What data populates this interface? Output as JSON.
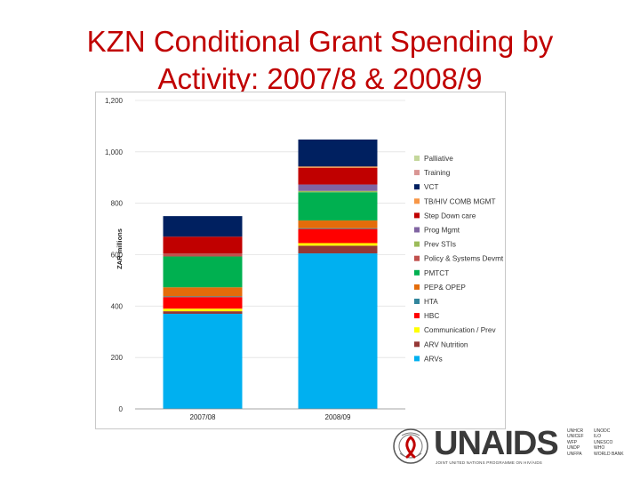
{
  "slide": {
    "title_line1": "KZN Conditional Grant Spending by",
    "title_line2": "Activity: 2007/8 & 2008/9"
  },
  "chart_data": {
    "type": "bar",
    "stacked": true,
    "ylabel": "ZAR millions",
    "ylim": [
      0,
      1200
    ],
    "yticks": [
      0,
      200,
      400,
      600,
      800,
      1000,
      1200
    ],
    "ytick_labels": [
      "0",
      "200",
      "400",
      "600",
      "800",
      "1,000",
      "1,200"
    ],
    "categories": [
      "2007/08",
      "2008/09"
    ],
    "legend_position": "right",
    "series": [
      {
        "name": "ARVs",
        "color": "#00b0f0",
        "values": [
          370,
          605
        ]
      },
      {
        "name": "ARV Nutrition",
        "color": "#953735",
        "values": [
          10,
          30
        ]
      },
      {
        "name": "Communication / Prev",
        "color": "#ffff00",
        "values": [
          10,
          10
        ]
      },
      {
        "name": "HBC",
        "color": "#ff0000",
        "values": [
          45,
          55
        ]
      },
      {
        "name": "HTA",
        "color": "#31859c",
        "values": [
          3,
          3
        ]
      },
      {
        "name": "PEP& OPEP",
        "color": "#e46c0a",
        "values": [
          35,
          30
        ]
      },
      {
        "name": "PMTCT",
        "color": "#00b050",
        "values": [
          120,
          110
        ]
      },
      {
        "name": "Policy & Systems Devmt",
        "color": "#c0504d",
        "values": [
          12,
          0
        ]
      },
      {
        "name": "Prev STIs",
        "color": "#9bbb59",
        "values": [
          0,
          5
        ]
      },
      {
        "name": "Prog Mgmt",
        "color": "#8064a2",
        "values": [
          0,
          25
        ]
      },
      {
        "name": "Step Down care",
        "color": "#c00000",
        "values": [
          65,
          65
        ]
      },
      {
        "name": "TB/HIV COMB MGMT",
        "color": "#f79646",
        "values": [
          0,
          5
        ]
      },
      {
        "name": "VCT",
        "color": "#002060",
        "values": [
          80,
          105
        ]
      },
      {
        "name": "Training",
        "color": "#d99694",
        "values": [
          0,
          0
        ]
      },
      {
        "name": "Palliative",
        "color": "#c4d79b",
        "values": [
          0,
          0
        ]
      }
    ]
  },
  "logo": {
    "brand": "UNAIDS",
    "tagline": "JOINT UNITED NATIONS PROGRAMME ON HIV/AIDS",
    "cosponsors_col1": [
      "UNHCR",
      "UNICEF",
      "WFP",
      "UNDP",
      "UNFPA"
    ],
    "cosponsors_col2": [
      "UNODC",
      "ILO",
      "UNESCO",
      "WHO",
      "WORLD BANK"
    ]
  }
}
